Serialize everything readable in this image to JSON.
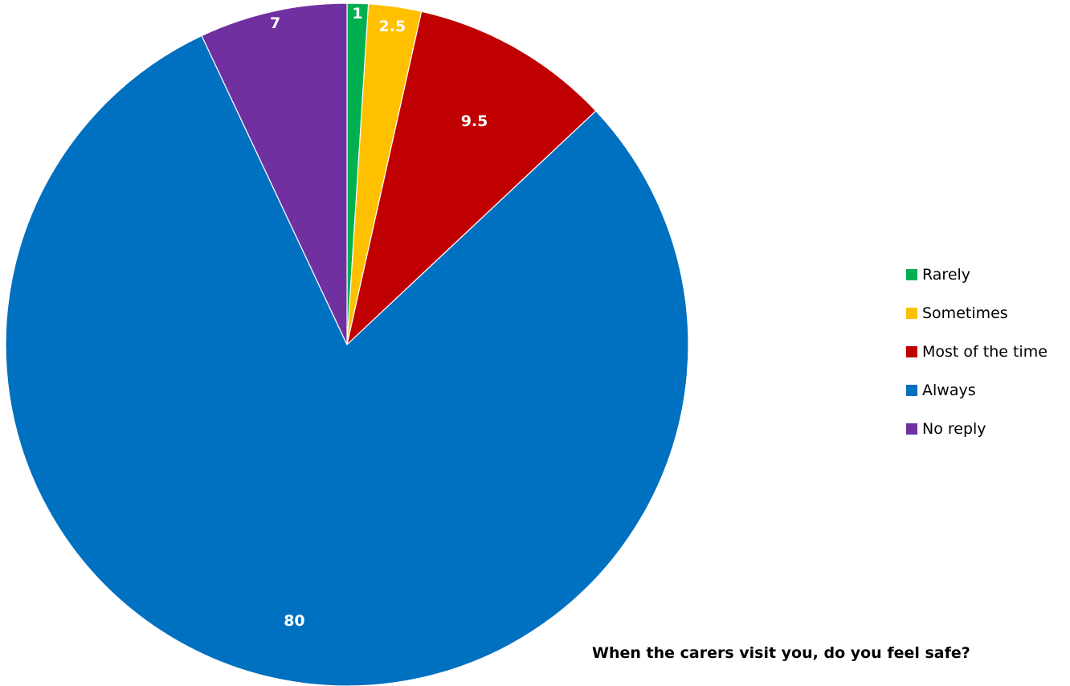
{
  "chart_data": {
    "type": "pie",
    "title": "When the carers visit you, do you feel safe?",
    "categories": [
      "Rarely",
      "Sometimes",
      "Most of the time",
      "Always",
      "No reply"
    ],
    "values": [
      1,
      2.5,
      9.5,
      80,
      7
    ],
    "value_labels": [
      "1",
      "2.5",
      "9.5",
      "80",
      "7"
    ],
    "colors": [
      "#00B050",
      "#FFC000",
      "#C00000",
      "#0070C0",
      "#7030A0"
    ],
    "start_angle": "12 o'clock",
    "direction": "clockwise",
    "legend_position": "right"
  }
}
